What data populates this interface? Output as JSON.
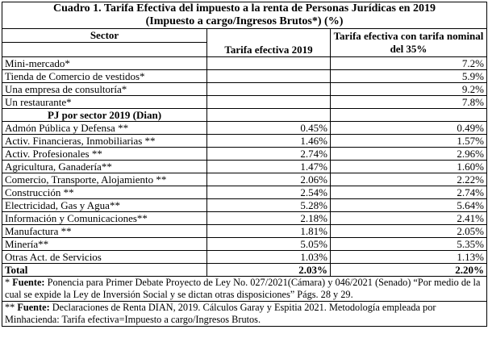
{
  "title": "Cuadro 1. Tarifa Efectiva del impuesto a la renta de Personas Jurídicas en 2019",
  "subtitle": "(Impuesto a cargo/Ingresos Brutos*) (%)",
  "header": {
    "sector": "Sector",
    "efectiva": "Tarifa efectiva 2019",
    "nominal": "Tarifa efectiva con tarifa nominal del 35%"
  },
  "table": {
    "rows": [
      {
        "sector": "Mini-mercado*",
        "nominal": "7.2%"
      },
      {
        "sector": "Tienda de Comercio de vestidos*",
        "nominal": "5.9%"
      },
      {
        "sector": "Una empresa de consultoría*",
        "nominal": "9.2%"
      },
      {
        "sector": "Un restaurante*",
        "nominal": "7.8%"
      }
    ],
    "section": "PJ por sector 2019 (Dian)",
    "sector_rows": [
      {
        "sector": "Admón Pública y Defensa **",
        "efectiva": "0.45%",
        "nominal": "0.49%"
      },
      {
        "sector": "Activ. Financieras, Inmobiliarias **",
        "efectiva": "1.46%",
        "nominal": "1.57%"
      },
      {
        "sector": "Activ. Profesionales **",
        "efectiva": "2.74%",
        "nominal": "2.96%"
      },
      {
        "sector": "Agricultura, Ganadería**",
        "efectiva": "1.47%",
        "nominal": "1.60%"
      },
      {
        "sector": "Comercio, Transporte, Alojamiento **",
        "efectiva": "2.06%",
        "nominal": "2.22%"
      },
      {
        "sector": "Construcción **",
        "efectiva": "2.54%",
        "nominal": "2.74%"
      },
      {
        "sector": "Electricidad, Gas y Agua**",
        "efectiva": "5.28%",
        "nominal": "5.64%"
      },
      {
        "sector": "Información y Comunicaciones**",
        "efectiva": "2.18%",
        "nominal": "2.41%"
      },
      {
        "sector": "Manufactura **",
        "efectiva": "1.81%",
        "nominal": "2.05%"
      },
      {
        "sector": "Minería**",
        "efectiva": "5.05%",
        "nominal": "5.35%"
      },
      {
        "sector": "Otras Act. de Servicios",
        "efectiva": "1.03%",
        "nominal": "1.13%"
      }
    ],
    "total": {
      "sector": "Total",
      "efectiva": "2.03%",
      "nominal": "2.20%"
    }
  },
  "footnotes": [
    {
      "marker": "*",
      "label": "Fuente:",
      "text": "Ponencia para Primer Debate Proyecto de Ley No. 027/2021(Cámara) y 046/2021 (Senado) “Por medio de la cual se expide la Ley de Inversión Social y se dictan otras disposiciones” Págs. 28 y 29."
    },
    {
      "marker": "**",
      "label": "Fuente:",
      "text": "Declaraciones de Renta DIAN, 2019. Cálculos Garay y Espitia 2021. Metodología empleada por Minhacienda: Tarifa efectiva=Impuesto a cargo/Ingresos Brutos."
    }
  ]
}
